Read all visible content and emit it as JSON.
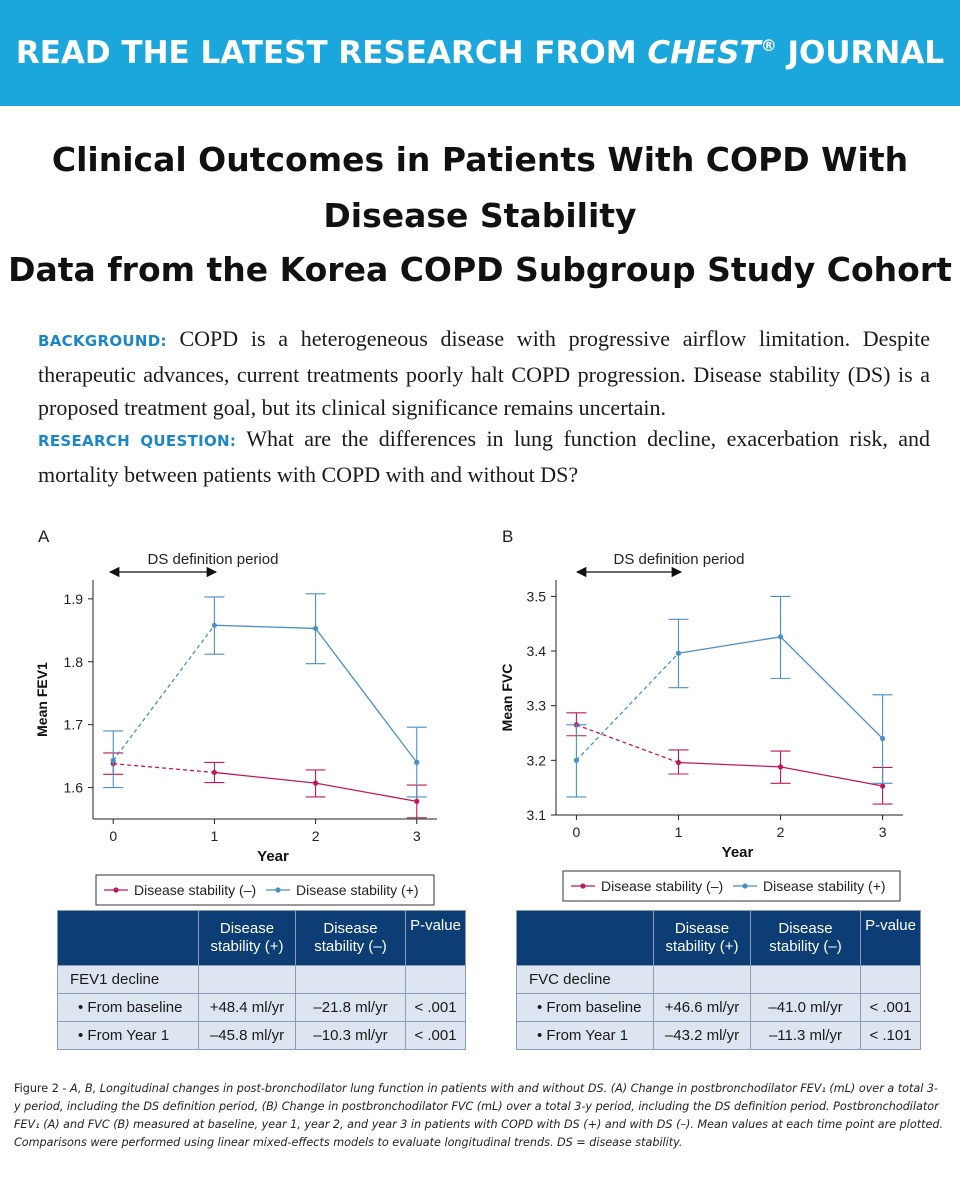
{
  "banner": {
    "prefix": "READ THE LATEST RESEARCH FROM ",
    "journal": "CHEST",
    "reg": "®",
    "suffix": " JOURNAL"
  },
  "title": {
    "line1": "Clinical Outcomes in Patients With COPD With",
    "line2": "Disease Stability",
    "line3": "Data from the Korea COPD Subgroup Study Cohort"
  },
  "background": {
    "label": "BACKGROUND:",
    "text": "COPD is a heterogeneous disease with progressive airflow limitation. Despite therapeutic advances, current treatments poorly halt COPD progression. Disease stability (DS) is a proposed treatment goal, but its clinical significance remains uncertain."
  },
  "research_question": {
    "label": "RESEARCH QUESTION:",
    "text": "What are the differences in lung function decline, exacerbation risk, and mortality between patients with COPD with and without DS?"
  },
  "colors": {
    "ds_plus": "#4a90c4",
    "ds_minus": "#c2185b",
    "table_header": "#0c3d75",
    "table_body": "#dde5f0",
    "banner": "#1ba6dc"
  },
  "chart_data": [
    {
      "type": "line",
      "panel": "A",
      "annotation": "DS definition period",
      "xlabel": "Year",
      "ylabel": "Mean FEV1",
      "x": [
        0,
        1,
        2,
        3
      ],
      "xlim": [
        -0.2,
        3.2
      ],
      "ylim": [
        1.55,
        1.93
      ],
      "yticks": [
        1.6,
        1.7,
        1.8,
        1.9
      ],
      "ytick_labels": [
        "1.6",
        "1.7",
        "1.8",
        "1.9"
      ],
      "legend": [
        "Disease stability (–)",
        "Disease stability (+)"
      ],
      "series": [
        {
          "name": "Disease stability (–)",
          "values": [
            1.638,
            1.624,
            1.607,
            1.578
          ],
          "err_low": [
            1.621,
            1.608,
            1.585,
            1.552
          ],
          "err_high": [
            1.655,
            1.64,
            1.628,
            1.604
          ]
        },
        {
          "name": "Disease stability (+)",
          "values": [
            1.643,
            1.858,
            1.853,
            1.64
          ],
          "err_low": [
            1.6,
            1.812,
            1.797,
            1.585
          ],
          "err_high": [
            1.69,
            1.903,
            1.908,
            1.696
          ]
        }
      ]
    },
    {
      "type": "line",
      "panel": "B",
      "annotation": "DS definition period",
      "xlabel": "Year",
      "ylabel": "Mean FVC",
      "x": [
        0,
        1,
        2,
        3
      ],
      "xlim": [
        -0.2,
        3.2
      ],
      "ylim": [
        3.1,
        3.53
      ],
      "yticks": [
        3.1,
        3.2,
        3.3,
        3.4,
        3.5
      ],
      "ytick_labels": [
        "3.1",
        "3.2",
        "3.3",
        "3.4",
        "3.5"
      ],
      "legend": [
        "Disease stability (–)",
        "Disease stability (+)"
      ],
      "series": [
        {
          "name": "Disease stability (–)",
          "values": [
            3.265,
            3.196,
            3.188,
            3.153
          ],
          "err_low": [
            3.245,
            3.175,
            3.158,
            3.12
          ],
          "err_high": [
            3.287,
            3.219,
            3.217,
            3.187
          ]
        },
        {
          "name": "Disease stability (+)",
          "values": [
            3.2,
            3.396,
            3.426,
            3.24
          ],
          "err_low": [
            3.133,
            3.333,
            3.35,
            3.158
          ],
          "err_high": [
            3.265,
            3.458,
            3.5,
            3.32
          ]
        }
      ]
    }
  ],
  "tables": [
    {
      "headers": [
        "",
        "Disease\nstability (+)",
        "Disease\nstability (–)",
        "P-value"
      ],
      "section": "FEV1 decline",
      "rows": [
        {
          "label": "• From baseline",
          "plus": "+48.4 ml/yr",
          "minus": "–21.8 ml/yr",
          "p": "< .001"
        },
        {
          "label": "• From Year 1",
          "plus": "–45.8 ml/yr",
          "minus": "–10.3 ml/yr",
          "p": "< .001"
        }
      ]
    },
    {
      "headers": [
        "",
        "Disease\nstability (+)",
        "Disease\nstability (–)",
        "P-value"
      ],
      "section": "FVC decline",
      "rows": [
        {
          "label": "• From baseline",
          "plus": "+46.6 ml/yr",
          "minus": "–41.0 ml/yr",
          "p": "< .001"
        },
        {
          "label": "• From Year 1",
          "plus": "–43.2 ml/yr",
          "minus": "–11.3 ml/yr",
          "p": "< .101"
        }
      ]
    }
  ],
  "caption": {
    "lead": "Figure 2 - ",
    "text": "A, B, Longitudinal changes in post-bronchodilator lung function in patients with and without DS. (A) Change in postbronchodilator FEV₁ (mL) over a total 3-y period, including the DS definition period, (B) Change in postbronchodilator FVC (mL) over a total 3-y period, including the DS definition period. Postbronchodilator FEV₁ (A) and FVC (B) measured at baseline, year 1, year 2, and year 3 in patients with COPD with DS (+) and with DS (–). Mean values at each time point are plotted. Comparisons were performed using linear mixed-effects models to evaluate longitudinal trends. DS = disease stability."
  }
}
